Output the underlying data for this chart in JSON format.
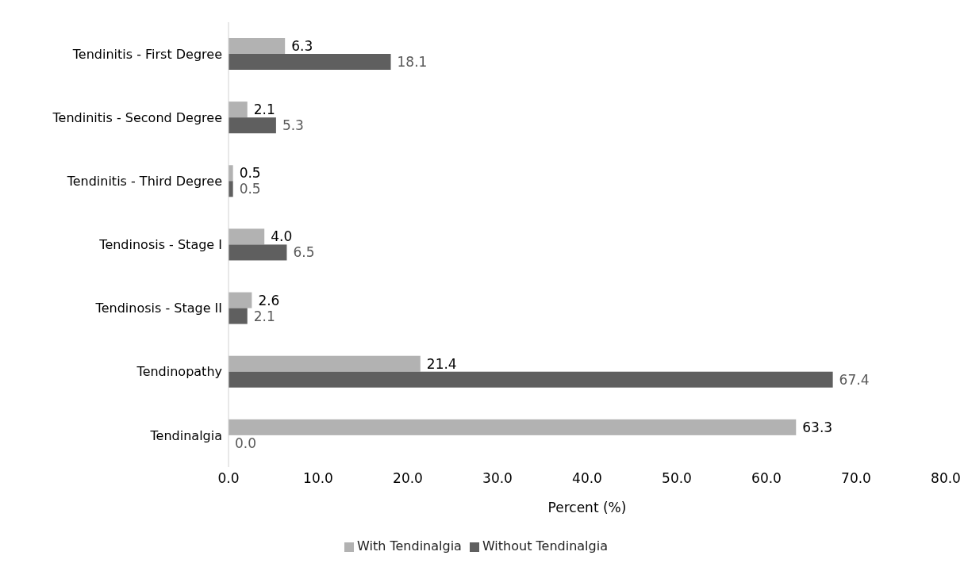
{
  "chart_data": {
    "type": "bar",
    "orientation": "horizontal",
    "xlabel": "Percent (%)",
    "categories": [
      "Tendinitis - First Degree",
      "Tendinitis - Second Degree",
      "Tendinitis - Third Degree",
      "Tendinosis - Stage I",
      "Tendinosis - Stage II",
      "Tendinopathy",
      "Tendinalgia"
    ],
    "series": [
      {
        "name": "With Tendinalgia",
        "color": "#b2b2b2",
        "values": [
          6.3,
          2.1,
          0.5,
          4.0,
          2.6,
          21.4,
          63.3
        ],
        "value_labels": [
          "6.3",
          "2.1",
          "0.5",
          "4.0",
          "2.6",
          "21.4",
          "63.3"
        ]
      },
      {
        "name": "Without Tendinalgia",
        "color": "#5f5f5f",
        "values": [
          18.1,
          5.3,
          0.5,
          6.5,
          2.1,
          67.4,
          0.0
        ],
        "value_labels": [
          "18.1",
          "5.3",
          "0.5",
          "6.5",
          "2.1",
          "67.4",
          "0.0"
        ]
      }
    ],
    "xlim": [
      0,
      80
    ],
    "xticks": [
      {
        "value": 0,
        "label": "0.0"
      },
      {
        "value": 10,
        "label": "10.0"
      },
      {
        "value": 20,
        "label": "20.0"
      },
      {
        "value": 30,
        "label": "30.0"
      },
      {
        "value": 40,
        "label": "40.0"
      },
      {
        "value": 50,
        "label": "50.0"
      },
      {
        "value": 60,
        "label": "60.0"
      },
      {
        "value": 70,
        "label": "70.0"
      },
      {
        "value": 80,
        "label": "80.0"
      }
    ],
    "grid": false,
    "legend": "bottom"
  }
}
